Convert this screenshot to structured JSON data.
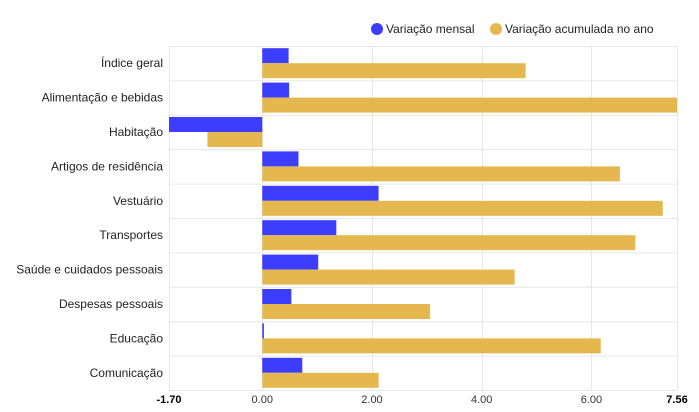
{
  "chart_data": {
    "type": "bar",
    "orientation": "horizontal",
    "categories": [
      "Índice geral",
      "Alimentação e bebidas",
      "Habitação",
      "Artigos de residência",
      "Vestuário",
      "Transportes",
      "Saúde e cuidados pessoais",
      "Despesas pessoais",
      "Educação",
      "Comunicação"
    ],
    "series": [
      {
        "name": "Variação mensal",
        "color": "#3d3dff",
        "values": [
          0.48,
          0.49,
          -1.7,
          0.66,
          2.12,
          1.35,
          1.02,
          0.53,
          0.03,
          0.73
        ]
      },
      {
        "name": "Variação acumulada no ano",
        "color": "#e5b84f",
        "values": [
          4.8,
          7.56,
          -1.0,
          6.52,
          7.3,
          6.8,
          4.6,
          3.06,
          6.17,
          2.12
        ]
      }
    ],
    "xlim": [
      -1.7,
      7.56
    ],
    "xticks": [
      "-1.70",
      "0.00",
      "2.00",
      "4.00",
      "6.00",
      "7.56"
    ],
    "xtick_values": [
      -1.7,
      0.0,
      2.0,
      4.0,
      6.0,
      7.56
    ],
    "bold_ticks": [
      "-1.70",
      "7.56"
    ],
    "legend_position": "top-right",
    "grid": true,
    "title": "",
    "xlabel": "",
    "ylabel": ""
  }
}
